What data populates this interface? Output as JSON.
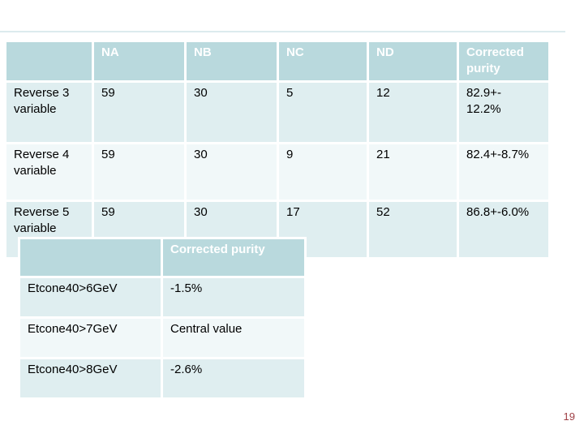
{
  "slide": {
    "page_number": "19"
  },
  "colors": {
    "header_background": "#b9d9dd",
    "header_text": "#ffffff",
    "banded_row_background": "#dfeef0",
    "light_row_background": "#f1f8f9",
    "body_text": "#000000",
    "page_number_text": "#9e3e44",
    "top_line": "#dcebee"
  },
  "chart_data": [
    {
      "type": "table",
      "title": "",
      "columns": [
        "",
        "NA",
        "NB",
        "NC",
        "ND",
        "Corrected purity"
      ],
      "rows": [
        [
          "Reverse 3 variable",
          "59",
          "30",
          "5",
          "12",
          "82.9+-12.2%"
        ],
        [
          "Reverse 4 variable",
          "59",
          "30",
          "9",
          "21",
          "82.4+-8.7%"
        ],
        [
          "Reverse 5 variable",
          "59",
          "30",
          "17",
          "52",
          "86.8+-6.0%"
        ]
      ]
    },
    {
      "type": "table",
      "title": "",
      "columns": [
        "",
        "Corrected purity"
      ],
      "rows": [
        [
          "Etcone40>6GeV",
          "-1.5%"
        ],
        [
          "Etcone40>7GeV",
          "Central value"
        ],
        [
          "Etcone40>8GeV",
          "-2.6%"
        ]
      ]
    }
  ],
  "results_table": {
    "headers": [
      "",
      "NA",
      "NB",
      "NC",
      "ND",
      "Corrected purity"
    ],
    "rows": [
      [
        "Reverse 3 variable",
        "59",
        "30",
        "5",
        "12",
        "82.9+-\n12.2%"
      ],
      [
        "Reverse 4 variable",
        "59",
        "30",
        "9",
        "21",
        "82.4+-8.7%"
      ],
      [
        "Reverse 5 variable",
        "59",
        "30",
        "17",
        "52",
        "86.8+-6.0%"
      ]
    ]
  },
  "corrections_table": {
    "headers": [
      "",
      "Corrected purity"
    ],
    "rows": [
      [
        "Etcone40>6GeV",
        "-1.5%"
      ],
      [
        "Etcone40>7GeV",
        "Central value"
      ],
      [
        "Etcone40>8GeV",
        "-2.6%"
      ]
    ]
  }
}
